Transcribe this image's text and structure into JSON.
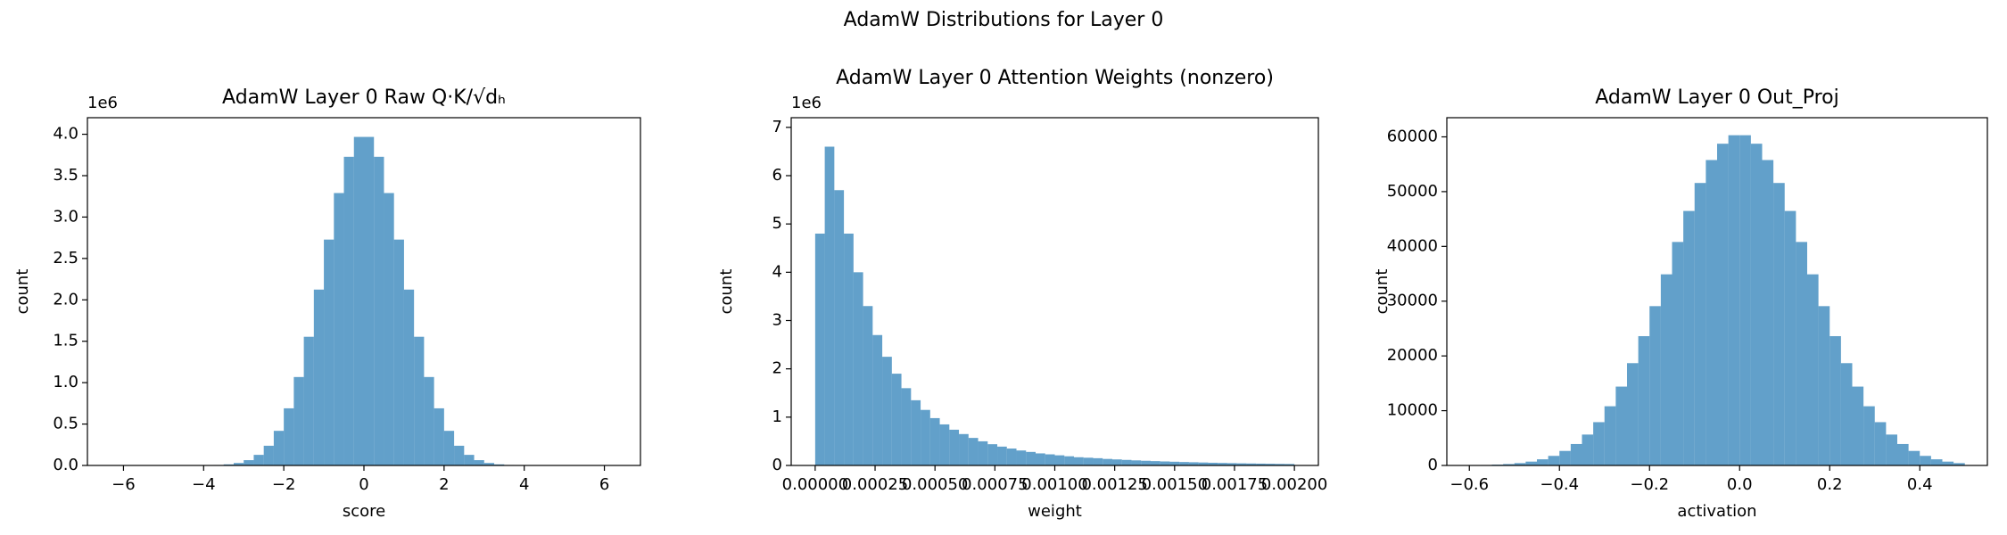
{
  "title": "AdamW Distributions for Layer 0",
  "chart_data": [
    {
      "type": "histogram",
      "title": "AdamW Layer 0 Raw Q·K/√dₕ",
      "xlabel": "score",
      "ylabel": "count",
      "y_offset_label": "1e6",
      "color": "#1f77b4",
      "alpha": 0.7,
      "bins": [
        -6.25,
        -6,
        -5.75,
        -5.5,
        -5.25,
        -5,
        -4.75,
        -4.5,
        -4.25,
        -4,
        -3.75,
        -3.5,
        -3.25,
        -3,
        -2.75,
        -2.5,
        -2.25,
        -2,
        -1.75,
        -1.5,
        -1.25,
        -1,
        -0.75,
        -0.5,
        -0.25,
        0,
        0.25,
        0.5,
        0.75,
        1,
        1.25,
        1.5,
        1.75,
        2,
        2.25,
        2.5,
        2.75,
        3,
        3.25,
        3.5,
        3.75,
        4,
        4.25,
        4.5,
        4.75,
        5,
        5.25,
        5.5,
        5.75,
        6,
        6.25
      ],
      "counts": [
        0,
        0,
        1,
        2,
        8,
        27,
        90,
        280,
        800,
        2200,
        5600,
        13000,
        30000,
        64000,
        128000,
        238000,
        418000,
        690000,
        1068000,
        1554000,
        2124000,
        2728000,
        3290000,
        3728000,
        3968000,
        3968000,
        3728000,
        3290000,
        2728000,
        2124000,
        1554000,
        1068000,
        690000,
        418000,
        238000,
        128000,
        64000,
        30000,
        13000,
        5600,
        2200,
        800,
        280,
        90,
        27,
        8,
        2,
        1,
        0,
        0
      ],
      "xlim": [
        -6.9,
        6.9
      ],
      "xticks": [
        {
          "value": -6,
          "label": "−6"
        },
        {
          "value": -4,
          "label": "−4"
        },
        {
          "value": -2,
          "label": "−2"
        },
        0,
        2,
        4,
        6
      ],
      "ylim": [
        0,
        4200000
      ],
      "yticks": [
        {
          "value": 0,
          "label": "0.0"
        },
        {
          "value": 500000,
          "label": "0.5"
        },
        {
          "value": 1000000,
          "label": "1.0"
        },
        {
          "value": 1500000,
          "label": "1.5"
        },
        {
          "value": 2000000,
          "label": "2.0"
        },
        {
          "value": 2500000,
          "label": "2.5"
        },
        {
          "value": 3000000,
          "label": "3.0"
        },
        {
          "value": 3500000,
          "label": "3.5"
        },
        {
          "value": 4000000,
          "label": "4.0"
        }
      ]
    },
    {
      "type": "histogram",
      "title": "AdamW Layer 0 Attention Weights (nonzero)",
      "xlabel": "weight",
      "ylabel": "count",
      "y_offset_label": "1e6",
      "color": "#1f77b4",
      "alpha": 0.7,
      "bins": [
        0,
        4e-05,
        8e-05,
        0.00012,
        0.00016,
        0.0002,
        0.00024,
        0.00028,
        0.00032,
        0.00036,
        0.0004,
        0.00044,
        0.00048,
        0.00052,
        0.00056,
        0.0006,
        0.00064,
        0.00068,
        0.00072,
        0.00076,
        0.0008,
        0.00084,
        0.00088,
        0.00092,
        0.00096,
        0.001,
        0.00104,
        0.00108,
        0.00112,
        0.00116,
        0.0012,
        0.00124,
        0.00128,
        0.00132,
        0.00136,
        0.0014,
        0.00144,
        0.00148,
        0.00152,
        0.00156,
        0.0016,
        0.00164,
        0.00168,
        0.00172,
        0.00176,
        0.0018,
        0.00184,
        0.00188,
        0.00192,
        0.00196,
        0.002
      ],
      "counts": [
        4800000,
        6600000,
        5700000,
        4800000,
        4000000,
        3300000,
        2700000,
        2250000,
        1900000,
        1600000,
        1350000,
        1150000,
        980000,
        850000,
        740000,
        650000,
        570000,
        500000,
        440000,
        390000,
        350000,
        310000,
        280000,
        250000,
        230000,
        210000,
        190000,
        170000,
        160000,
        150000,
        135000,
        125000,
        115000,
        105000,
        97000,
        90000,
        83000,
        77000,
        71000,
        66000,
        61000,
        56000,
        52000,
        48000,
        44000,
        41000,
        38000,
        35000,
        32000,
        30000
      ],
      "xlim": [
        -0.0001,
        0.0021
      ],
      "xticks": [
        {
          "value": 0,
          "label": "0.00000"
        },
        {
          "value": 0.00025,
          "label": "0.00025"
        },
        {
          "value": 0.0005,
          "label": "0.00050"
        },
        {
          "value": 0.00075,
          "label": "0.00075"
        },
        {
          "value": 0.001,
          "label": "0.00100"
        },
        {
          "value": 0.00125,
          "label": "0.00125"
        },
        {
          "value": 0.0015,
          "label": "0.00150"
        },
        {
          "value": 0.00175,
          "label": "0.00175"
        },
        {
          "value": 0.002,
          "label": "0.00200"
        }
      ],
      "ylim": [
        0,
        7200000
      ],
      "yticks": [
        0,
        {
          "value": 1000000,
          "label": "1"
        },
        {
          "value": 2000000,
          "label": "2"
        },
        {
          "value": 3000000,
          "label": "3"
        },
        {
          "value": 4000000,
          "label": "4"
        },
        {
          "value": 5000000,
          "label": "5"
        },
        {
          "value": 6000000,
          "label": "6"
        },
        {
          "value": 7000000,
          "label": "7"
        }
      ]
    },
    {
      "type": "histogram",
      "title": "AdamW Layer 0 Out_Proj",
      "xlabel": "activation",
      "ylabel": "count",
      "color": "#1f77b4",
      "alpha": 0.7,
      "bins": [
        -0.6,
        -0.575,
        -0.55,
        -0.525,
        -0.5,
        -0.475,
        -0.45,
        -0.425,
        -0.4,
        -0.375,
        -0.35,
        -0.325,
        -0.3,
        -0.275,
        -0.25,
        -0.225,
        -0.2,
        -0.175,
        -0.15,
        -0.125,
        -0.1,
        -0.075,
        -0.05,
        -0.025,
        0,
        0.025,
        0.05,
        0.075,
        0.1,
        0.125,
        0.15,
        0.175,
        0.2,
        0.225,
        0.25,
        0.275,
        0.3,
        0.325,
        0.35,
        0.375,
        0.4,
        0.425,
        0.45,
        0.475,
        0.5
      ],
      "counts": [
        45,
        83,
        147,
        254,
        430,
        702,
        1123,
        1746,
        2651,
        3914,
        5640,
        7906,
        10810,
        14400,
        18680,
        23610,
        29090,
        34900,
        40810,
        46470,
        51580,
        55770,
        58750,
        60300,
        60300,
        58750,
        55770,
        51580,
        46470,
        40810,
        34900,
        29090,
        23610,
        18680,
        14400,
        10810,
        7906,
        5640,
        3914,
        2651,
        1746,
        1123,
        702,
        430
      ],
      "xlim": [
        -0.65,
        0.55
      ],
      "xticks": [
        {
          "value": -0.6,
          "label": "−0.6"
        },
        {
          "value": -0.4,
          "label": "−0.4"
        },
        {
          "value": -0.2,
          "label": "−0.2"
        },
        {
          "value": 0,
          "label": "0.0"
        },
        {
          "value": 0.2,
          "label": "0.2"
        },
        {
          "value": 0.4,
          "label": "0.4"
        }
      ],
      "ylim": [
        0,
        63500
      ],
      "yticks": [
        0,
        10000,
        20000,
        30000,
        40000,
        50000,
        60000
      ]
    }
  ]
}
